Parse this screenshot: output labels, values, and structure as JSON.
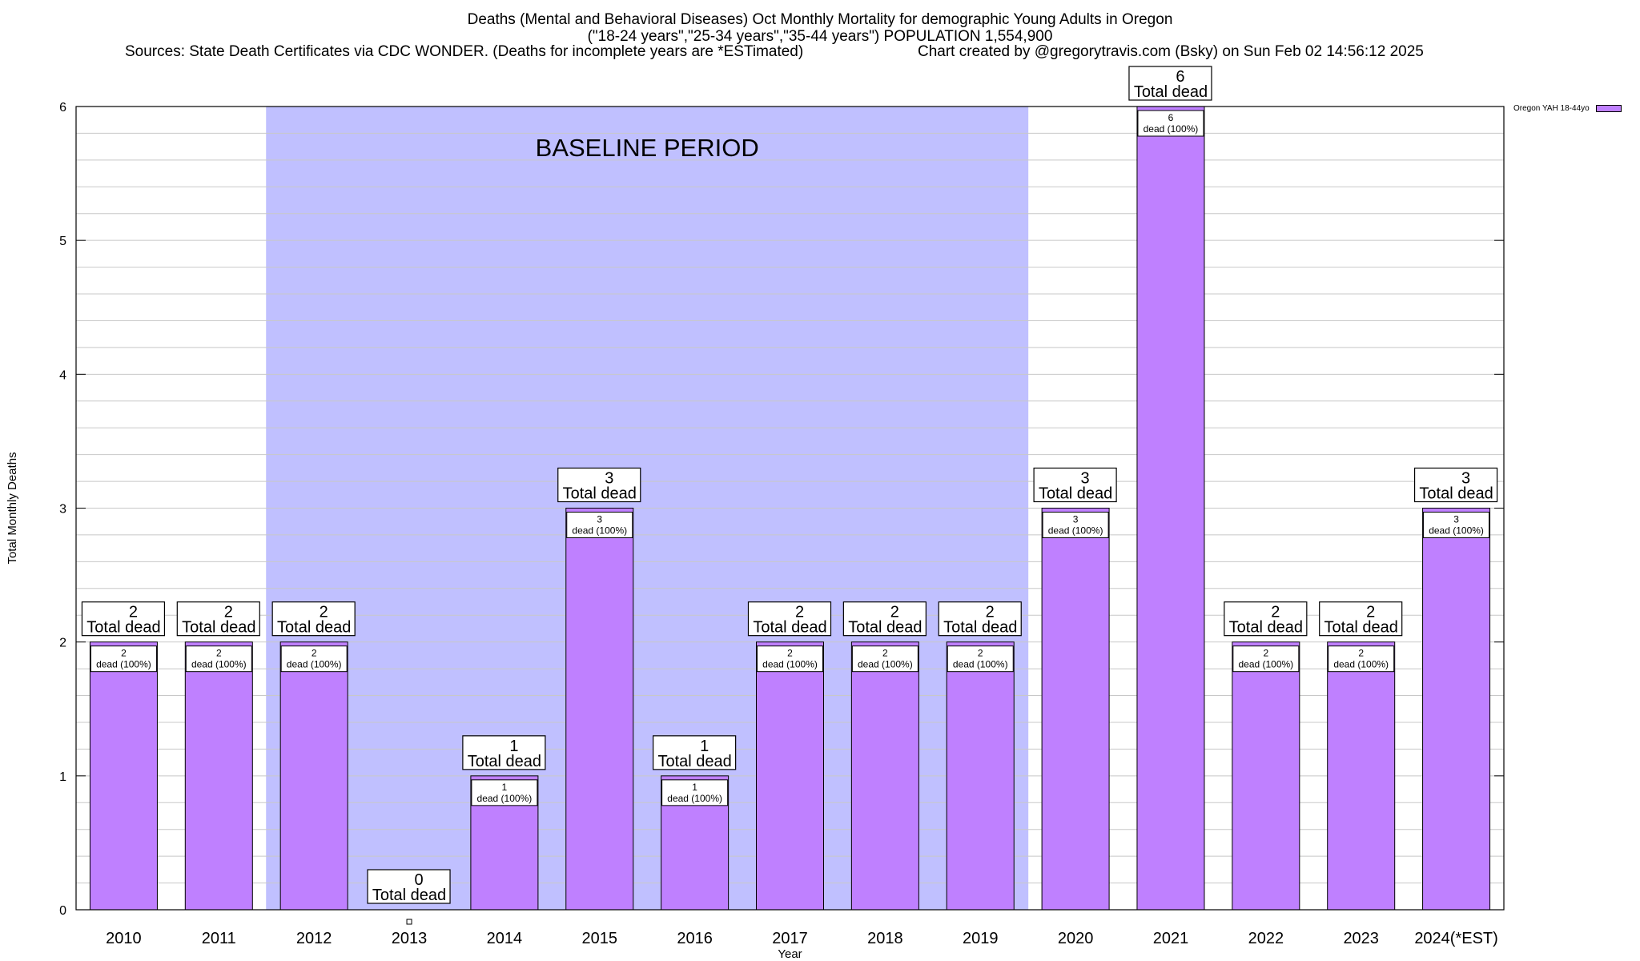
{
  "header": {
    "title_line1": "Deaths (Mental and Behavioral Diseases) Oct Monthly Mortality for demographic Young Adults in Oregon",
    "title_line2": "(\"18-24 years\",\"25-34 years\",\"35-44 years\") POPULATION 1,554,900",
    "sources": "Sources: State Death Certificates via CDC WONDER. (Deaths for incomplete years are *ESTimated)",
    "credit": "Chart created by @gregorytravis.com (Bsky) on Sun Feb 02 14:56:12 2025"
  },
  "legend": {
    "label": "Oregon YAH 18-44yo"
  },
  "colors": {
    "bar": "#bf80ff",
    "baseline": "#c0c0ff",
    "grid": "#c8c8c8"
  },
  "chart_data": {
    "type": "bar",
    "categories": [
      "2010",
      "2011",
      "2012",
      "2013",
      "2014",
      "2015",
      "2016",
      "2017",
      "2018",
      "2019",
      "2020",
      "2021",
      "2022",
      "2023",
      "2024(*EST)"
    ],
    "series": [
      {
        "name": "Oregon YAH 18-44yo",
        "values": [
          2,
          2,
          2,
          0,
          1,
          3,
          1,
          2,
          2,
          2,
          3,
          6,
          2,
          2,
          3
        ]
      }
    ],
    "bar_inner_labels": [
      "dead (100%)",
      "dead (100%)",
      "dead (100%)",
      "",
      "dead (100%)",
      "dead (100%)",
      "dead (100%)",
      "dead (100%)",
      "dead (100%)",
      "dead (100%)",
      "dead (100%)",
      "dead (100%)",
      "dead (100%)",
      "dead (100%)",
      "dead (100%)"
    ],
    "bar_top_label": "Total dead",
    "xlabel": "Year",
    "ylabel": "Total Monthly Deaths",
    "ylim": [
      0,
      6
    ],
    "yticks": [
      0,
      1,
      2,
      3,
      4,
      5,
      6
    ],
    "minor_grid_step": 0.2,
    "baseline_period": {
      "label": "BASELINE PERIOD",
      "from": "2012",
      "to": "2019"
    }
  }
}
